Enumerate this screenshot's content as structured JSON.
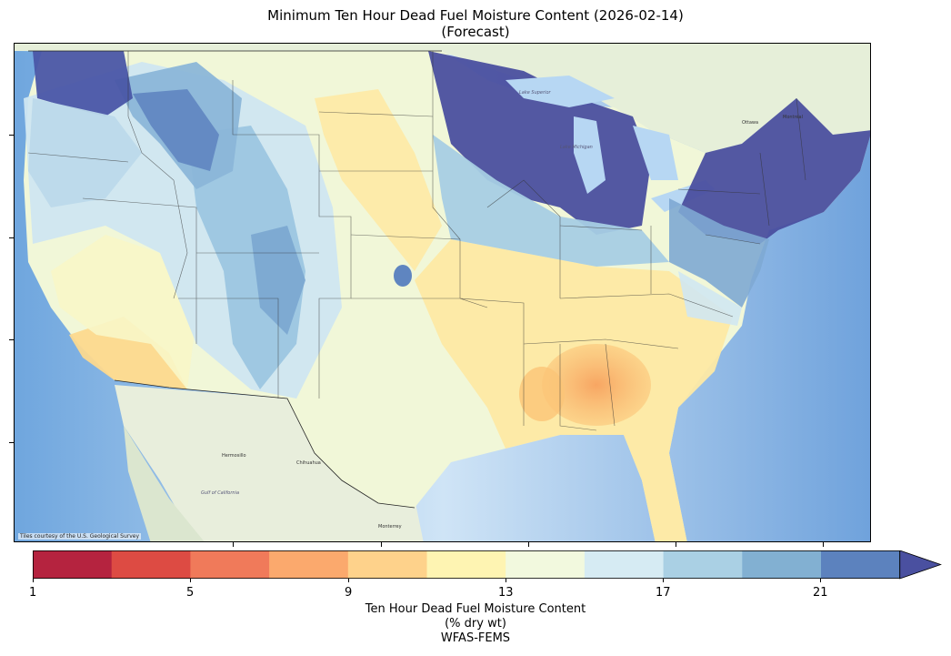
{
  "title": {
    "line1": "Minimum Ten Hour Dead Fuel Moisture Content (2026-02-14)",
    "line2": "(Forecast)"
  },
  "map": {
    "credit": "Tiles courtesy of the U.S. Geological Survey",
    "place_labels": {
      "mexico_city1": "Hermosillo",
      "mexico_city2": "Chihuahua",
      "mexico_city3": "Monterrey",
      "gulf_ca": "Gulf of California",
      "lake_sup": "Lake Superior",
      "lake_mich": "Lake Michigan",
      "ottawa": "Ottawa",
      "montreal": "Montréal"
    }
  },
  "colorbar": {
    "tick_labels": [
      "1",
      "5",
      "9",
      "13",
      "17",
      "21"
    ],
    "title_line1": "Ten Hour Dead Fuel Moisture Content",
    "title_line2": "(% dry wt)",
    "title_line3": "WFAS-FEMS",
    "colors": [
      "#b5233f",
      "#dd4b43",
      "#f07a5a",
      "#fba96d",
      "#fed28b",
      "#fef4b2",
      "#f2f9de",
      "#d6ebf3",
      "#aad0e4",
      "#82b0d2",
      "#5c82be",
      "#4a50a0"
    ]
  }
}
